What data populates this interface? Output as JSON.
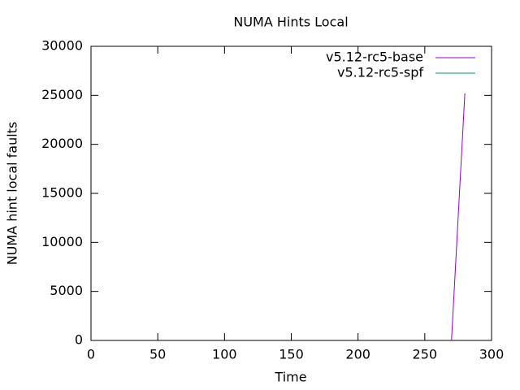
{
  "chart_data": {
    "type": "line",
    "title": "NUMA Hints Local",
    "x_label": "Time",
    "y_label": "NUMA hint local faults",
    "series": [
      {
        "name": "v5.12-rc5-base",
        "color": "#9400d3",
        "x": [
          270,
          280
        ],
        "values": [
          0,
          25200
        ]
      },
      {
        "name": "v5.12-rc5-spf",
        "color": "#009e73",
        "x": [],
        "values": []
      }
    ],
    "xlim": [
      0,
      300
    ],
    "xticks": [
      0,
      50,
      100,
      150,
      200,
      250,
      300
    ],
    "ylim": [
      0,
      30000
    ],
    "yticks": [
      0,
      5000,
      10000,
      15000,
      20000,
      25000,
      30000
    ],
    "legend": "top-right",
    "grid": false
  }
}
